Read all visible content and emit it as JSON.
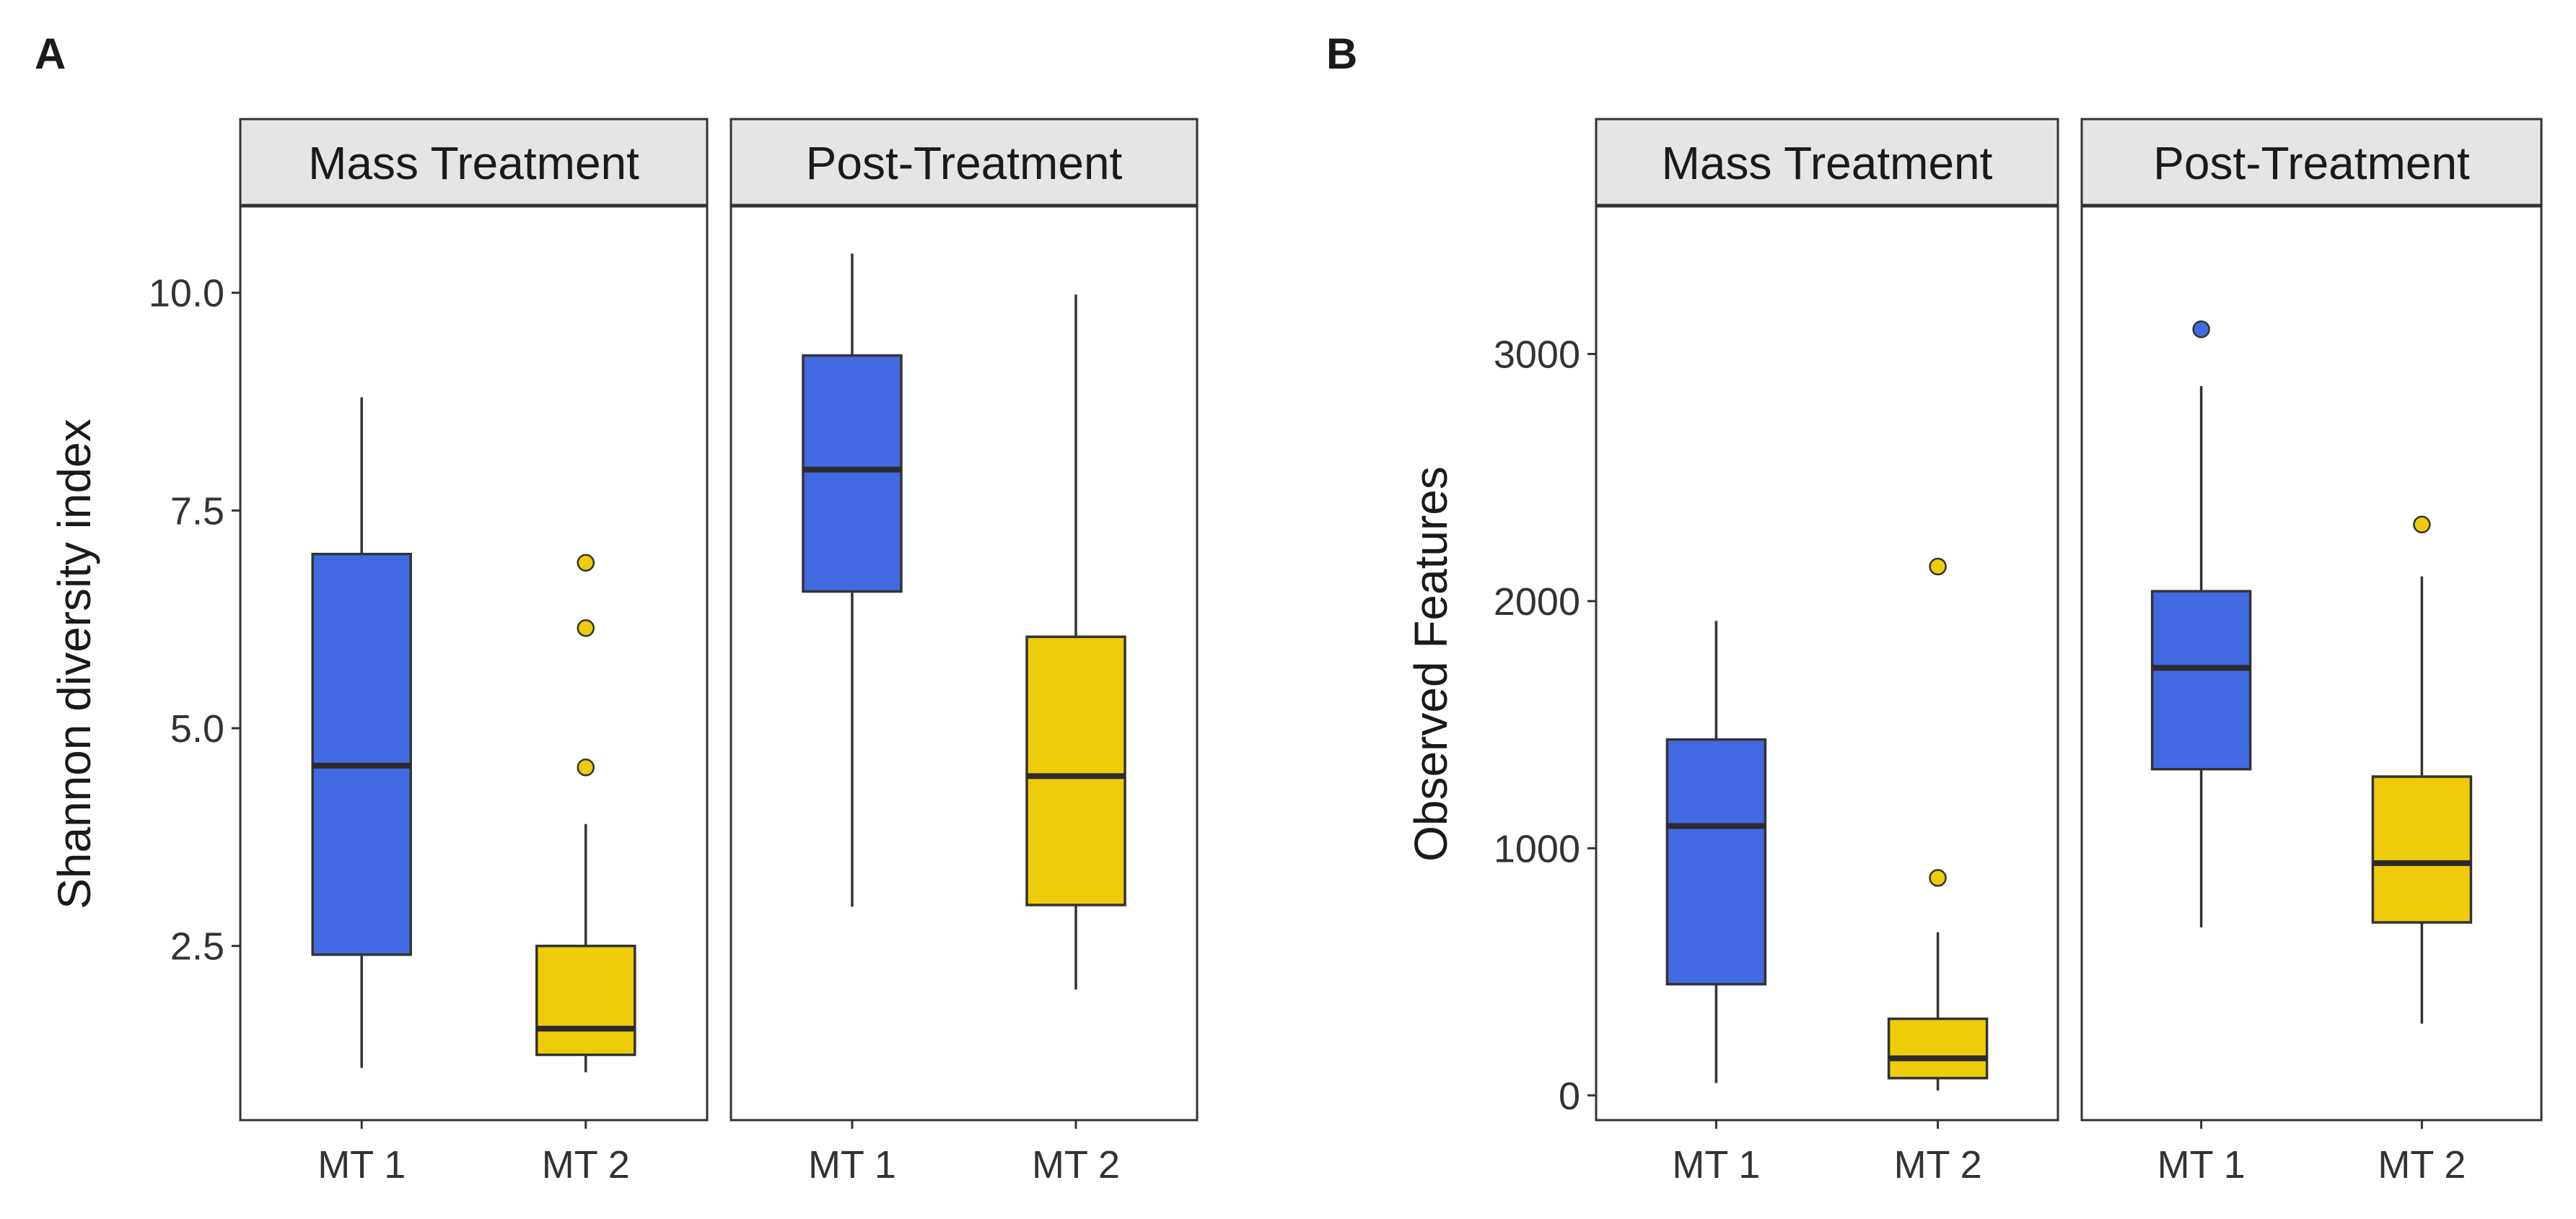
{
  "figure": {
    "panels": [
      "A",
      "B"
    ]
  },
  "colors": {
    "MT 1": "#4169E1",
    "MT 2": "#EECC0A",
    "strip_fill": "#E5E5E5",
    "frame": "#333333",
    "box_line": "#333333"
  },
  "chart_data": [
    {
      "type": "boxplot",
      "panel_label": "A",
      "ylabel": "Shannon diversity index",
      "xlabel": "",
      "ylim": [
        0.5,
        11.0
      ],
      "yticks": [
        2.5,
        5.0,
        7.5,
        10.0
      ],
      "ytick_labels": [
        "2.5",
        "5.0",
        "7.5",
        "10.0"
      ],
      "facets": [
        {
          "label": "Mass Treatment",
          "groups": [
            {
              "name": "MT 1",
              "min": 1.1,
              "q1": 2.4,
              "median": 4.57,
              "q3": 7.0,
              "max": 8.8,
              "outliers": []
            },
            {
              "name": "MT 2",
              "min": 1.05,
              "q1": 1.25,
              "median": 1.55,
              "q3": 2.5,
              "max": 3.9,
              "outliers": [
                6.9,
                6.15,
                4.55
              ]
            }
          ]
        },
        {
          "label": "Post-Treatment",
          "groups": [
            {
              "name": "MT 1",
              "min": 2.95,
              "q1": 6.57,
              "median": 7.97,
              "q3": 9.28,
              "max": 10.45,
              "outliers": []
            },
            {
              "name": "MT 2",
              "min": 2.0,
              "q1": 2.97,
              "median": 4.45,
              "q3": 6.05,
              "max": 9.98,
              "outliers": []
            }
          ]
        }
      ]
    },
    {
      "type": "boxplot",
      "panel_label": "B",
      "ylabel": "Observed Features",
      "xlabel": "",
      "ylim": [
        -100,
        3600
      ],
      "yticks": [
        0,
        1000,
        2000,
        3000
      ],
      "ytick_labels": [
        "0",
        "1000",
        "2000",
        "3000"
      ],
      "facets": [
        {
          "label": "Mass Treatment",
          "groups": [
            {
              "name": "MT 1",
              "min": 50,
              "q1": 450,
              "median": 1090,
              "q3": 1440,
              "max": 1920,
              "outliers": []
            },
            {
              "name": "MT 2",
              "min": 20,
              "q1": 70,
              "median": 150,
              "q3": 310,
              "max": 660,
              "outliers": [
                2140,
                880
              ]
            }
          ]
        },
        {
          "label": "Post-Treatment",
          "groups": [
            {
              "name": "MT 1",
              "min": 680,
              "q1": 1320,
              "median": 1730,
              "q3": 2040,
              "max": 2870,
              "outliers": [
                3100
              ]
            },
            {
              "name": "MT 2",
              "min": 290,
              "q1": 700,
              "median": 940,
              "q3": 1290,
              "max": 2100,
              "outliers": [
                2310
              ]
            }
          ]
        }
      ]
    }
  ]
}
